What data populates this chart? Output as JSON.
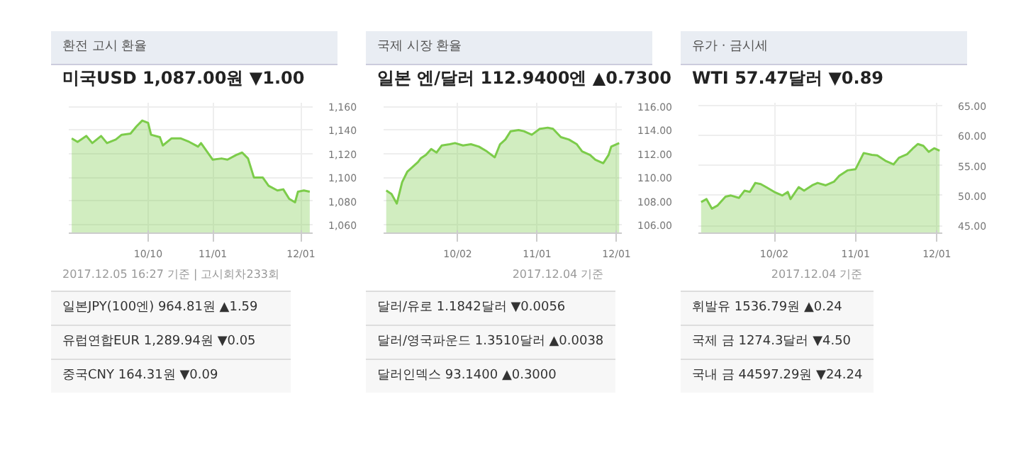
{
  "chart_data": [
    {
      "type": "area",
      "title": "환전 고시 환율",
      "subtitle": "미국USD 1,087.00원 ▼1.00",
      "color": "#7ccc4a",
      "grid": true,
      "x": [
        "2017-09-14",
        "2017-09-16",
        "2017-09-19",
        "2017-09-21",
        "2017-09-24",
        "2017-09-26",
        "2017-09-29",
        "2017-10-01",
        "2017-10-04",
        "2017-10-06",
        "2017-10-08",
        "2017-10-10",
        "2017-10-11",
        "2017-10-14",
        "2017-10-15",
        "2017-10-18",
        "2017-10-21",
        "2017-10-24",
        "2017-10-27",
        "2017-10-28",
        "2017-10-30",
        "2017-11-01",
        "2017-11-04",
        "2017-11-06",
        "2017-11-09",
        "2017-11-11",
        "2017-11-13",
        "2017-11-15",
        "2017-11-18",
        "2017-11-20",
        "2017-11-23",
        "2017-11-25",
        "2017-11-27",
        "2017-11-29",
        "2017-11-30",
        "2017-12-02",
        "2017-12-04"
      ],
      "values": [
        1133,
        1130,
        1135,
        1129,
        1135,
        1129,
        1132,
        1136,
        1137,
        1143,
        1148,
        1146,
        1136,
        1134,
        1127,
        1133,
        1133,
        1130,
        1126,
        1129,
        1122,
        1115,
        1116,
        1115,
        1119,
        1121,
        1116,
        1100,
        1100,
        1093,
        1089,
        1090,
        1082,
        1079,
        1088,
        1089,
        1088
      ],
      "xlim": [
        "2017-09-13",
        "2017-12-05"
      ],
      "xticks": [
        {
          "value": "2017-10-10",
          "label": "10/10"
        },
        {
          "value": "2017-11-01",
          "label": "11/01"
        },
        {
          "value": "2017-12-01",
          "label": "12/01"
        }
      ],
      "ylim": [
        1053,
        1163
      ],
      "yticks": [
        {
          "value": 1060,
          "label": "1,060"
        },
        {
          "value": 1080,
          "label": "1,080"
        },
        {
          "value": 1100,
          "label": "1,100"
        },
        {
          "value": 1120,
          "label": "1,120"
        },
        {
          "value": 1140,
          "label": "1,140"
        },
        {
          "value": 1160,
          "label": "1,160"
        }
      ],
      "annotations": [
        "2017.12.05 16:27 기준 | 고시회차233회",
        "일본JPY(100엔) 964.81원 ▲1.59",
        "유럽연합EUR 1,289.94원 ▼0.05",
        "중국CNY 164.31원 ▼0.09"
      ]
    },
    {
      "type": "area",
      "title": "국제 시장 환율",
      "subtitle": "일본 엔/달러 112.9400엔 ▲0.7300",
      "color": "#7ccc4a",
      "grid": true,
      "x": [
        "2017-09-05",
        "2017-09-07",
        "2017-09-09",
        "2017-09-11",
        "2017-09-13",
        "2017-09-15",
        "2017-09-17",
        "2017-09-18",
        "2017-09-20",
        "2017-09-22",
        "2017-09-24",
        "2017-09-26",
        "2017-09-29",
        "2017-10-01",
        "2017-10-04",
        "2017-10-07",
        "2017-10-10",
        "2017-10-13",
        "2017-10-16",
        "2017-10-18",
        "2017-10-20",
        "2017-10-22",
        "2017-10-25",
        "2017-10-27",
        "2017-10-30",
        "2017-11-02",
        "2017-11-05",
        "2017-11-07",
        "2017-11-10",
        "2017-11-13",
        "2017-11-16",
        "2017-11-18",
        "2017-11-21",
        "2017-11-23",
        "2017-11-26",
        "2017-11-28",
        "2017-11-29",
        "2017-12-02"
      ],
      "values": [
        108.9,
        108.6,
        107.8,
        109.6,
        110.5,
        110.9,
        111.3,
        111.6,
        111.9,
        112.4,
        112.1,
        112.7,
        112.8,
        112.9,
        112.7,
        112.8,
        112.6,
        112.2,
        111.7,
        112.8,
        113.2,
        113.9,
        114.0,
        113.9,
        113.6,
        114.1,
        114.2,
        114.1,
        113.4,
        113.2,
        112.8,
        112.2,
        111.9,
        111.5,
        111.2,
        111.9,
        112.6,
        112.9
      ],
      "xlim": [
        "2017-09-04",
        "2017-12-03"
      ],
      "xticks": [
        {
          "value": "2017-10-02",
          "label": "10/02"
        },
        {
          "value": "2017-11-01",
          "label": "11/01"
        },
        {
          "value": "2017-12-01",
          "label": "12/01"
        }
      ],
      "ylim": [
        105.3,
        116.3
      ],
      "yticks": [
        {
          "value": 106,
          "label": "106.00"
        },
        {
          "value": 108,
          "label": "108.00"
        },
        {
          "value": 110,
          "label": "110.00"
        },
        {
          "value": 112,
          "label": "112.00"
        },
        {
          "value": 114,
          "label": "114.00"
        },
        {
          "value": 116,
          "label": "116.00"
        }
      ],
      "annotations": [
        "2017.12.04 기준",
        "달러/유로 1.1842달러 ▼0.0056",
        "달러/영국파운드 1.3510달러 ▲0.0038",
        "달러인덱스 93.1400 ▲0.3000"
      ]
    },
    {
      "type": "area",
      "title": "유가 · 금시세",
      "subtitle": "WTI 57.47달러 ▼0.89",
      "color": "#7ccc4a",
      "grid": true,
      "x": [
        "2017-09-05",
        "2017-09-07",
        "2017-09-09",
        "2017-09-11",
        "2017-09-14",
        "2017-09-16",
        "2017-09-19",
        "2017-09-21",
        "2017-09-23",
        "2017-09-25",
        "2017-09-27",
        "2017-09-29",
        "2017-10-02",
        "2017-10-05",
        "2017-10-07",
        "2017-10-08",
        "2017-10-11",
        "2017-10-13",
        "2017-10-16",
        "2017-10-18",
        "2017-10-21",
        "2017-10-24",
        "2017-10-26",
        "2017-10-29",
        "2017-11-01",
        "2017-11-04",
        "2017-11-07",
        "2017-11-09",
        "2017-11-12",
        "2017-11-15",
        "2017-11-17",
        "2017-11-20",
        "2017-11-22",
        "2017-11-24",
        "2017-11-26",
        "2017-11-28",
        "2017-11-30",
        "2017-12-02"
      ],
      "values": [
        48.9,
        49.4,
        47.8,
        48.3,
        49.8,
        50.0,
        49.6,
        50.8,
        50.6,
        52.1,
        51.9,
        51.4,
        50.6,
        50.0,
        50.6,
        49.4,
        51.4,
        50.8,
        51.7,
        52.1,
        51.7,
        52.3,
        53.3,
        54.2,
        54.4,
        57.1,
        56.8,
        56.7,
        55.8,
        55.2,
        56.3,
        56.9,
        57.8,
        58.6,
        58.3,
        57.3,
        57.9,
        57.5
      ],
      "xlim": [
        "2017-09-04",
        "2017-12-03"
      ],
      "xticks": [
        {
          "value": "2017-10-02",
          "label": "10/02"
        },
        {
          "value": "2017-11-01",
          "label": "11/01"
        },
        {
          "value": "2017-12-01",
          "label": "12/01"
        }
      ],
      "ylim": [
        43.7,
        65.5
      ],
      "yticks": [
        {
          "value": 45,
          "label": "45.00"
        },
        {
          "value": 50,
          "label": "50.00"
        },
        {
          "value": 55,
          "label": "55.00"
        },
        {
          "value": 60,
          "label": "60.00"
        },
        {
          "value": 65,
          "label": "65.00"
        }
      ],
      "annotations": [
        "2017.12.04 기준",
        "휘발유 1536.79원 ▲0.24",
        "국제 금 1274.3달러 ▼4.50",
        "국내 금 44597.29원 ▼24.24"
      ]
    }
  ]
}
